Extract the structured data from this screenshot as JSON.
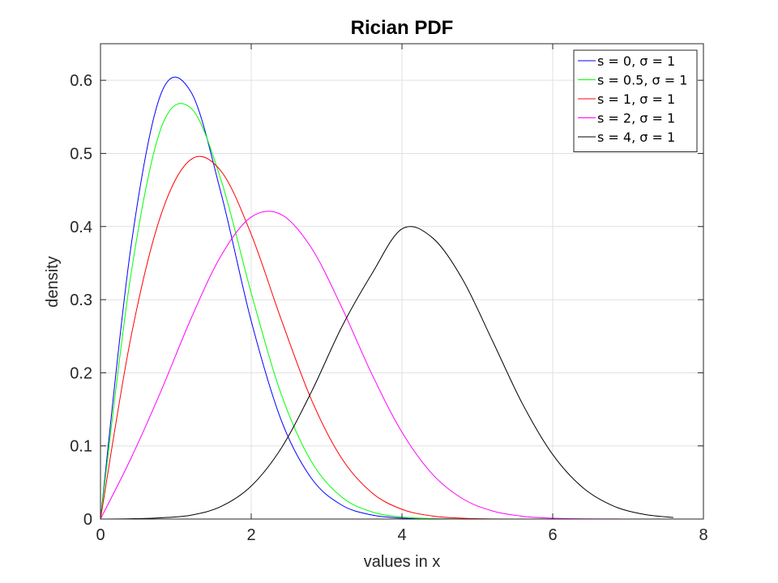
{
  "chart_data": {
    "type": "line",
    "title": "Rician PDF",
    "xlabel": "values in x",
    "ylabel": "density",
    "xlim": [
      0,
      8
    ],
    "ylim": [
      0,
      0.65
    ],
    "xticks": [
      0,
      2,
      4,
      6,
      8
    ],
    "yticks": [
      0,
      0.1,
      0.2,
      0.3,
      0.4,
      0.5,
      0.6
    ],
    "xtick_labels": [
      "0",
      "2",
      "4",
      "6",
      "8"
    ],
    "ytick_labels": [
      "0",
      "0.1",
      "0.2",
      "0.3",
      "0.4",
      "0.5",
      "0.6"
    ],
    "grid": true,
    "legend_position": "top-right",
    "x": [
      0,
      0.4,
      0.8,
      1.2,
      1.6,
      2.0,
      2.4,
      2.8,
      3.2,
      3.6,
      4.0,
      4.4,
      4.8,
      5.2,
      5.6,
      6.0,
      6.4,
      6.8,
      7.2,
      7.6
    ],
    "series": [
      {
        "name": "s = 0, σ = 1",
        "color": "#0000ff",
        "values": [
          0,
          0.3692,
          0.5808,
          0.5841,
          0.4454,
          0.2707,
          0.1346,
          0.0555,
          0.0191,
          0.0055,
          0.0013,
          0.0003,
          0.0,
          0.0,
          0.0,
          0.0,
          0.0,
          0.0,
          0.0,
          0.0
        ]
      },
      {
        "name": "s = 0.5, σ = 1",
        "color": "#00ff00",
        "values": [
          0,
          0.3316,
          0.5335,
          0.562,
          0.4635,
          0.309,
          0.1702,
          0.0783,
          0.0302,
          0.0098,
          0.0027,
          0.0006,
          0.0001,
          0.0,
          0.0,
          0.0,
          0.0,
          0.0,
          0.0,
          0.0
        ]
      },
      {
        "name": "s = 1, σ = 1",
        "color": "#ff0000",
        "values": [
          0,
          0.2466,
          0.4152,
          0.4917,
          0.4757,
          0.3893,
          0.2723,
          0.1629,
          0.083,
          0.036,
          0.0133,
          0.0042,
          0.0011,
          0.0002,
          0.0,
          0.0,
          0.0,
          0.0,
          0.0,
          0.0
        ]
      },
      {
        "name": "s = 2, σ = 1",
        "color": "#ff00ff",
        "values": [
          0,
          0.0821,
          0.1743,
          0.2738,
          0.3602,
          0.413,
          0.4163,
          0.3705,
          0.2897,
          0.1983,
          0.1187,
          0.0618,
          0.0281,
          0.0111,
          0.0038,
          0.0011,
          0.0003,
          0.0001,
          0.0,
          0.0
        ]
      },
      {
        "name": "s = 4, σ = 1",
        "color": "#000000",
        "values": [
          0,
          0.0004,
          0.0017,
          0.0053,
          0.0172,
          0.0451,
          0.0972,
          0.1742,
          0.2624,
          0.3353,
          0.3968,
          0.385,
          0.3285,
          0.2439,
          0.1573,
          0.0882,
          0.0429,
          0.0181,
          0.0066,
          0.0021
        ]
      }
    ]
  }
}
